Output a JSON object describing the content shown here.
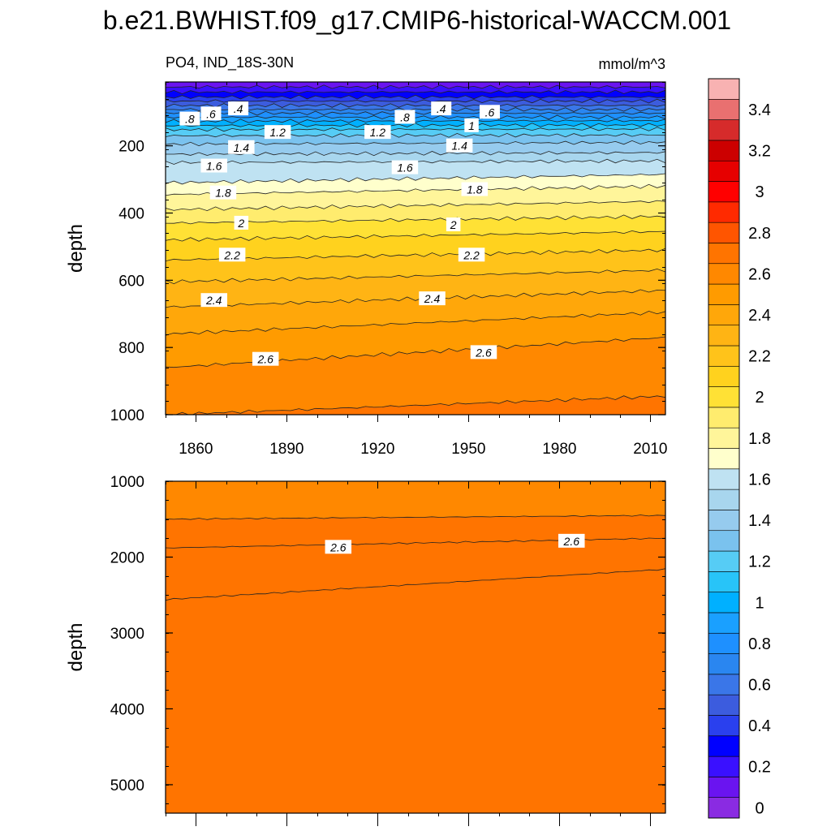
{
  "title": "b.e21.BWHIST.f09_g17.CMIP6-historical-WACCM.001",
  "left_subtitle": "PO4, IND_18S-30N",
  "right_subtitle": "mmol/m^3",
  "chart_data": [
    {
      "type": "heatmap",
      "panel": "upper",
      "xlabel": "",
      "ylabel": "depth",
      "xlim": [
        1850,
        2015
      ],
      "ylim": [
        1000,
        10
      ],
      "y_inverted": true,
      "xticks": [
        1860,
        1890,
        1920,
        1950,
        1980,
        2010
      ],
      "yticks": [
        200,
        400,
        600,
        800,
        1000
      ],
      "x": [
        1850,
        2015
      ],
      "contours": [
        {
          "level": 0.2,
          "depth": [
            25,
            25
          ]
        },
        {
          "level": 0.3,
          "depth": [
            40,
            40
          ]
        },
        {
          "level": 0.4,
          "depth": [
            55,
            55
          ]
        },
        {
          "level": 0.5,
          "depth": [
            67,
            67
          ]
        },
        {
          "level": 0.6,
          "depth": [
            80,
            80
          ]
        },
        {
          "level": 0.7,
          "depth": [
            92,
            92
          ]
        },
        {
          "level": 0.8,
          "depth": [
            103,
            103
          ]
        },
        {
          "level": 0.9,
          "depth": [
            115,
            115
          ]
        },
        {
          "level": 1.0,
          "depth": [
            127,
            125
          ]
        },
        {
          "level": 1.1,
          "depth": [
            140,
            138
          ]
        },
        {
          "level": 1.2,
          "depth": [
            152,
            150
          ]
        },
        {
          "level": 1.3,
          "depth": [
            170,
            168
          ]
        },
        {
          "level": 1.4,
          "depth": [
            195,
            190
          ]
        },
        {
          "level": 1.5,
          "depth": [
            225,
            220
          ]
        },
        {
          "level": 1.6,
          "depth": [
            250,
            245
          ]
        },
        {
          "level": 1.7,
          "depth": [
            310,
            285
          ]
        },
        {
          "level": 1.8,
          "depth": [
            345,
            320
          ]
        },
        {
          "level": 1.9,
          "depth": [
            390,
            365
          ]
        },
        {
          "level": 2.0,
          "depth": [
            430,
            410
          ]
        },
        {
          "level": 2.1,
          "depth": [
            480,
            455
          ]
        },
        {
          "level": 2.2,
          "depth": [
            540,
            510
          ]
        },
        {
          "level": 2.3,
          "depth": [
            605,
            570
          ]
        },
        {
          "level": 2.4,
          "depth": [
            680,
            630
          ]
        },
        {
          "level": 2.5,
          "depth": [
            760,
            695
          ]
        },
        {
          "level": 2.6,
          "depth": [
            860,
            770
          ]
        },
        {
          "level": 2.7,
          "depth": [
            1000,
            945
          ]
        }
      ],
      "labels": [
        {
          "text": ".8",
          "x": 1858,
          "depth": 120
        },
        {
          "text": ".6",
          "x": 1865,
          "depth": 105
        },
        {
          "text": ".4",
          "x": 1874,
          "depth": 90
        },
        {
          "text": "1.2",
          "x": 1887,
          "depth": 160
        },
        {
          "text": "1.4",
          "x": 1875,
          "depth": 205
        },
        {
          "text": "1.6",
          "x": 1866,
          "depth": 260
        },
        {
          "text": "1.8",
          "x": 1869,
          "depth": 340
        },
        {
          "text": "2",
          "x": 1875,
          "depth": 430
        },
        {
          "text": "2.2",
          "x": 1872,
          "depth": 525
        },
        {
          "text": "2.4",
          "x": 1866,
          "depth": 660
        },
        {
          "text": "2.6",
          "x": 1883,
          "depth": 835
        },
        {
          "text": "1.2",
          "x": 1920,
          "depth": 160
        },
        {
          "text": ".8",
          "x": 1929,
          "depth": 115
        },
        {
          "text": ".4",
          "x": 1941,
          "depth": 90
        },
        {
          "text": "1",
          "x": 1951,
          "depth": 140
        },
        {
          "text": ".6",
          "x": 1957,
          "depth": 100
        },
        {
          "text": "1.4",
          "x": 1947,
          "depth": 200
        },
        {
          "text": "1.6",
          "x": 1929,
          "depth": 265
        },
        {
          "text": "1.8",
          "x": 1952,
          "depth": 330
        },
        {
          "text": "2",
          "x": 1945,
          "depth": 435
        },
        {
          "text": "2.2",
          "x": 1951,
          "depth": 525
        },
        {
          "text": "2.4",
          "x": 1938,
          "depth": 655
        },
        {
          "text": "2.6",
          "x": 1955,
          "depth": 815
        }
      ]
    },
    {
      "type": "heatmap",
      "panel": "lower",
      "xlabel": "",
      "ylabel": "depth",
      "xlim": [
        1850,
        2015
      ],
      "ylim": [
        5375,
        1000
      ],
      "y_inverted": true,
      "yticks": [
        1000,
        2000,
        3000,
        4000,
        5000
      ],
      "x": [
        1850,
        2015
      ],
      "contours": [
        {
          "level": 2.7,
          "depth": [
            1500,
            1450
          ]
        },
        {
          "level": 2.6,
          "depth": [
            1880,
            1750
          ]
        },
        {
          "level": 2.5,
          "depth": [
            2560,
            2160
          ]
        }
      ],
      "labels": [
        {
          "text": "2.6",
          "x": 1907,
          "depth": 1870
        },
        {
          "text": "2.6",
          "x": 1984,
          "depth": 1790
        }
      ]
    }
  ],
  "colorbar": {
    "levels": [
      0,
      0.1,
      0.2,
      0.3,
      0.4,
      0.5,
      0.6,
      0.7,
      0.8,
      0.9,
      1,
      1.1,
      1.2,
      1.3,
      1.4,
      1.5,
      1.6,
      1.7,
      1.8,
      1.9,
      2,
      2.1,
      2.2,
      2.3,
      2.4,
      2.5,
      2.6,
      2.7,
      2.8,
      2.9,
      3,
      3.1,
      3.2,
      3.3,
      3.4,
      3.5
    ],
    "tick_labels": [
      "0",
      "0.2",
      "0.4",
      "0.6",
      "0.8",
      "1",
      "1.2",
      "1.4",
      "1.6",
      "1.8",
      "2",
      "2.2",
      "2.4",
      "2.6",
      "2.8",
      "3",
      "3.2",
      "3.4"
    ],
    "colors": [
      "#8a2be2",
      "#6a14f0",
      "#3a10ff",
      "#0000ff",
      "#2a40ee",
      "#3c5cde",
      "#3a76e8",
      "#2a86f0",
      "#1e90ff",
      "#1aa0ff",
      "#00b0ff",
      "#28c4f8",
      "#56ccf5",
      "#7ac2ee",
      "#96cbee",
      "#a8d6ee",
      "#bfe2f2",
      "#ffffcc",
      "#fff59a",
      "#ffec6e",
      "#ffe135",
      "#ffd21e",
      "#ffc31a",
      "#ffb414",
      "#ffa70a",
      "#ff9b00",
      "#ff8800",
      "#ff7400",
      "#ff5500",
      "#ff2a00",
      "#ff0000",
      "#e60000",
      "#cc0000",
      "#d62b2b",
      "#e97070",
      "#f8b2b2"
    ]
  }
}
